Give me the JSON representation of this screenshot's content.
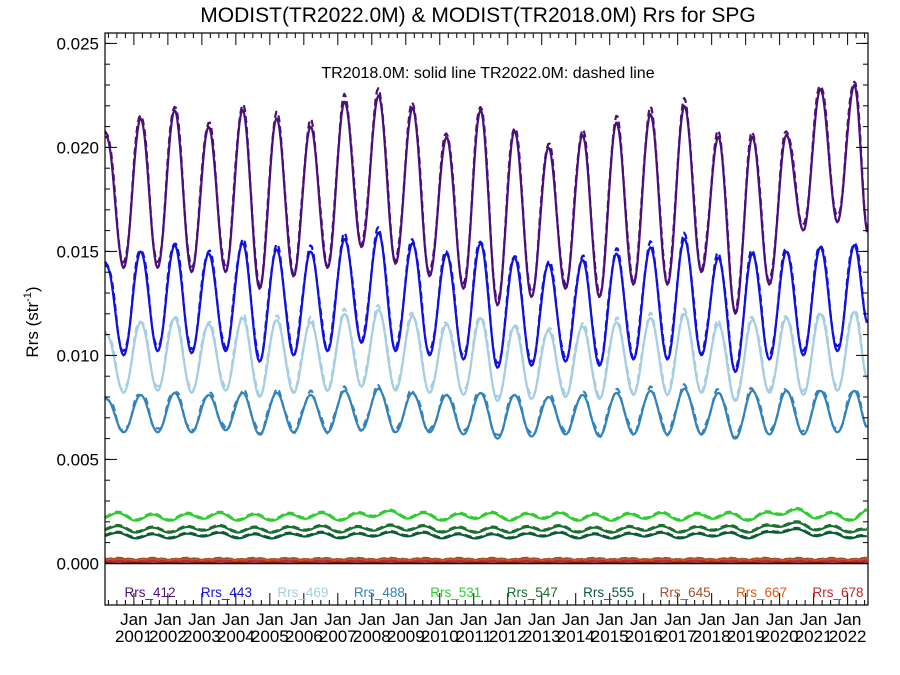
{
  "chart_data": {
    "type": "line",
    "title": "MODIST(TR2022.0M) & MODIST(TR2018.0M)  Rrs for SPG",
    "annotation": "TR2018.0M: solid line   TR2022.0M: dashed line",
    "ylabel": "Rrs (str",
    "ylabel_sup": "-1",
    "ylabel_end": ")",
    "ylim": [
      -0.002,
      0.0255
    ],
    "xlim": [
      2000.15,
      2022.6
    ],
    "y_ticks": [
      {
        "value": 0.0,
        "label": "0.000"
      },
      {
        "value": 0.005,
        "label": "0.005"
      },
      {
        "value": 0.01,
        "label": "0.010"
      },
      {
        "value": 0.015,
        "label": "0.015"
      },
      {
        "value": 0.02,
        "label": "0.020"
      },
      {
        "value": 0.025,
        "label": "0.025"
      }
    ],
    "x_ticks": [
      {
        "value": 2001,
        "label_top": "Jan",
        "label_bottom": "2001"
      },
      {
        "value": 2002,
        "label_top": "Jan",
        "label_bottom": "2002"
      },
      {
        "value": 2003,
        "label_top": "Jan",
        "label_bottom": "2003"
      },
      {
        "value": 2004,
        "label_top": "Jan",
        "label_bottom": "2004"
      },
      {
        "value": 2005,
        "label_top": "Jan",
        "label_bottom": "2005"
      },
      {
        "value": 2006,
        "label_top": "Jan",
        "label_bottom": "2006"
      },
      {
        "value": 2007,
        "label_top": "Jan",
        "label_bottom": "2007"
      },
      {
        "value": 2008,
        "label_top": "Jan",
        "label_bottom": "2008"
      },
      {
        "value": 2009,
        "label_top": "Jan",
        "label_bottom": "2009"
      },
      {
        "value": 2010,
        "label_top": "Jan",
        "label_bottom": "2010"
      },
      {
        "value": 2011,
        "label_top": "Jan",
        "label_bottom": "2011"
      },
      {
        "value": 2012,
        "label_top": "Jan",
        "label_bottom": "2012"
      },
      {
        "value": 2013,
        "label_top": "Jan",
        "label_bottom": "2013"
      },
      {
        "value": 2014,
        "label_top": "Jan",
        "label_bottom": "2014"
      },
      {
        "value": 2015,
        "label_top": "Jan",
        "label_bottom": "2015"
      },
      {
        "value": 2016,
        "label_top": "Jan",
        "label_bottom": "2016"
      },
      {
        "value": 2017,
        "label_top": "Jan",
        "label_bottom": "2017"
      },
      {
        "value": 2018,
        "label_top": "Jan",
        "label_bottom": "2018"
      },
      {
        "value": 2019,
        "label_top": "Jan",
        "label_bottom": "2019"
      },
      {
        "value": 2020,
        "label_top": "Jan",
        "label_bottom": "2020"
      },
      {
        "value": 2021,
        "label_top": "Jan",
        "label_bottom": "2021"
      },
      {
        "value": 2022,
        "label_top": "Jan",
        "label_bottom": "2022"
      }
    ],
    "series": [
      {
        "name": "Rrs_412",
        "color": "#4b0f7a",
        "peak_month": 6.5,
        "x": [
          2000.2,
          2000.7,
          2001.2,
          2001.7,
          2002.2,
          2002.7,
          2003.2,
          2003.7,
          2004.2,
          2004.7,
          2005.2,
          2005.7,
          2006.2,
          2006.7,
          2007.2,
          2007.7,
          2008.2,
          2008.7,
          2009.2,
          2009.7,
          2010.2,
          2010.7,
          2011.2,
          2011.7,
          2012.2,
          2012.7,
          2013.2,
          2013.7,
          2014.2,
          2014.7,
          2015.2,
          2015.7,
          2016.2,
          2016.7,
          2017.2,
          2017.7,
          2018.2,
          2018.7,
          2019.2,
          2019.7,
          2020.2,
          2020.7,
          2021.2,
          2021.7,
          2022.2,
          2022.6
        ],
        "y": [
          0.0205,
          0.0142,
          0.0214,
          0.0142,
          0.0218,
          0.014,
          0.021,
          0.014,
          0.0218,
          0.0132,
          0.0214,
          0.0138,
          0.021,
          0.0142,
          0.0222,
          0.0152,
          0.0225,
          0.0144,
          0.0219,
          0.0138,
          0.0205,
          0.0132,
          0.0218,
          0.0124,
          0.0208,
          0.0128,
          0.02,
          0.0132,
          0.0206,
          0.0128,
          0.0212,
          0.0134,
          0.0216,
          0.0134,
          0.022,
          0.014,
          0.0205,
          0.012,
          0.0205,
          0.0134,
          0.0206,
          0.016,
          0.0228,
          0.0164,
          0.023,
          0.0158
        ]
      },
      {
        "name": "Rrs_443",
        "color": "#1010e0",
        "peak_month": 6.5,
        "x": [
          2000.2,
          2000.7,
          2001.2,
          2001.7,
          2002.2,
          2002.7,
          2003.2,
          2003.7,
          2004.2,
          2004.7,
          2005.2,
          2005.7,
          2006.2,
          2006.7,
          2007.2,
          2007.7,
          2008.2,
          2008.7,
          2009.2,
          2009.7,
          2010.2,
          2010.7,
          2011.2,
          2011.7,
          2012.2,
          2012.7,
          2013.2,
          2013.7,
          2014.2,
          2014.7,
          2015.2,
          2015.7,
          2016.2,
          2016.7,
          2017.2,
          2017.7,
          2018.2,
          2018.7,
          2019.2,
          2019.7,
          2020.2,
          2020.7,
          2021.2,
          2021.7,
          2022.2,
          2022.6
        ],
        "y": [
          0.0143,
          0.01,
          0.015,
          0.0102,
          0.0153,
          0.0101,
          0.0149,
          0.0102,
          0.0154,
          0.0097,
          0.0151,
          0.01,
          0.015,
          0.0102,
          0.0156,
          0.0106,
          0.0159,
          0.0102,
          0.0154,
          0.01,
          0.0149,
          0.0098,
          0.0154,
          0.0094,
          0.0147,
          0.0095,
          0.0144,
          0.0097,
          0.0146,
          0.0095,
          0.0149,
          0.0098,
          0.0152,
          0.0098,
          0.0156,
          0.01,
          0.0147,
          0.0092,
          0.0149,
          0.0098,
          0.015,
          0.01,
          0.0152,
          0.0102,
          0.0153,
          0.0115
        ]
      },
      {
        "name": "Rrs_469",
        "color": "#a6cee3",
        "peak_month": 6.5,
        "x": [
          2000.2,
          2000.7,
          2001.2,
          2001.7,
          2002.2,
          2002.7,
          2003.2,
          2003.7,
          2004.2,
          2004.7,
          2005.2,
          2005.7,
          2006.2,
          2006.7,
          2007.2,
          2007.7,
          2008.2,
          2008.7,
          2009.2,
          2009.7,
          2010.2,
          2010.7,
          2011.2,
          2011.7,
          2012.2,
          2012.7,
          2013.2,
          2013.7,
          2014.2,
          2014.7,
          2015.2,
          2015.7,
          2016.2,
          2016.7,
          2017.2,
          2017.7,
          2018.2,
          2018.7,
          2019.2,
          2019.7,
          2020.2,
          2020.7,
          2021.2,
          2021.7,
          2022.2,
          2022.6
        ],
        "y": [
          0.011,
          0.0082,
          0.0116,
          0.0083,
          0.0118,
          0.0082,
          0.0115,
          0.0083,
          0.0118,
          0.008,
          0.0117,
          0.0082,
          0.0116,
          0.0083,
          0.012,
          0.0085,
          0.0122,
          0.0083,
          0.0119,
          0.0082,
          0.0115,
          0.0081,
          0.0118,
          0.0078,
          0.0114,
          0.0079,
          0.0112,
          0.008,
          0.0114,
          0.0079,
          0.0116,
          0.0081,
          0.0118,
          0.0081,
          0.012,
          0.0082,
          0.0115,
          0.0078,
          0.0117,
          0.0082,
          0.0118,
          0.0081,
          0.012,
          0.0083,
          0.0121,
          0.0088
        ]
      },
      {
        "name": "Rrs_488",
        "color": "#3182bd",
        "peak_month": 6.5,
        "x": [
          2000.2,
          2000.7,
          2001.2,
          2001.7,
          2002.2,
          2002.7,
          2003.2,
          2003.7,
          2004.2,
          2004.7,
          2005.2,
          2005.7,
          2006.2,
          2006.7,
          2007.2,
          2007.7,
          2008.2,
          2008.7,
          2009.2,
          2009.7,
          2010.2,
          2010.7,
          2011.2,
          2011.7,
          2012.2,
          2012.7,
          2013.2,
          2013.7,
          2014.2,
          2014.7,
          2015.2,
          2015.7,
          2016.2,
          2016.7,
          2017.2,
          2017.7,
          2018.2,
          2018.7,
          2019.2,
          2019.7,
          2020.2,
          2020.7,
          2021.2,
          2021.7,
          2022.2,
          2022.6
        ],
        "y": [
          0.0079,
          0.0063,
          0.0081,
          0.0063,
          0.0082,
          0.0063,
          0.0081,
          0.0064,
          0.0082,
          0.0062,
          0.0082,
          0.0063,
          0.0081,
          0.0063,
          0.0083,
          0.0064,
          0.0084,
          0.0063,
          0.0082,
          0.0063,
          0.0081,
          0.0062,
          0.0082,
          0.006,
          0.0081,
          0.0061,
          0.008,
          0.0062,
          0.0081,
          0.0061,
          0.0082,
          0.0062,
          0.0083,
          0.0062,
          0.0084,
          0.0062,
          0.0082,
          0.006,
          0.0083,
          0.0062,
          0.0083,
          0.0062,
          0.0083,
          0.0063,
          0.0083,
          0.0065
        ]
      },
      {
        "name": "Rrs_531",
        "color": "#2ecc2e",
        "peak_month": 6.5,
        "x": [
          2000.2,
          2001.2,
          2002.2,
          2003.2,
          2004.2,
          2005.2,
          2006.2,
          2007.2,
          2008.2,
          2009.2,
          2010.2,
          2011.2,
          2012.2,
          2013.2,
          2014.2,
          2015.2,
          2016.2,
          2017.2,
          2018.2,
          2019.2,
          2020.2,
          2021.2,
          2022.2,
          2022.6
        ],
        "y": [
          0.0023,
          0.0022,
          0.0022,
          0.0023,
          0.0022,
          0.0022,
          0.0023,
          0.0022,
          0.0024,
          0.0023,
          0.0022,
          0.0023,
          0.0022,
          0.0023,
          0.0022,
          0.0022,
          0.0023,
          0.0022,
          0.0023,
          0.0022,
          0.0025,
          0.0023,
          0.0022,
          0.0024
        ],
        "amplitude": 0.00015
      },
      {
        "name": "Rrs_547",
        "color": "#1b6e2f",
        "peak_month": 6.5,
        "x": [
          2000.2,
          2001.2,
          2002.2,
          2003.2,
          2004.2,
          2005.2,
          2006.2,
          2007.2,
          2008.2,
          2009.2,
          2010.2,
          2011.2,
          2012.2,
          2013.2,
          2014.2,
          2015.2,
          2016.2,
          2017.2,
          2018.2,
          2019.2,
          2020.2,
          2021.2,
          2022.2,
          2022.6
        ],
        "y": [
          0.0017,
          0.0016,
          0.0016,
          0.0017,
          0.0016,
          0.0016,
          0.0017,
          0.0016,
          0.0017,
          0.0017,
          0.0016,
          0.0016,
          0.0016,
          0.0017,
          0.0016,
          0.0016,
          0.0017,
          0.0016,
          0.0017,
          0.0016,
          0.0019,
          0.0017,
          0.0016,
          0.0015
        ],
        "amplitude": 0.00012
      },
      {
        "name": "Rrs_555",
        "color": "#0d5a36",
        "peak_month": 6.5,
        "x": [
          2000.2,
          2001.2,
          2002.2,
          2003.2,
          2004.2,
          2005.2,
          2006.2,
          2007.2,
          2008.2,
          2009.2,
          2010.2,
          2011.2,
          2012.2,
          2013.2,
          2014.2,
          2015.2,
          2016.2,
          2017.2,
          2018.2,
          2019.2,
          2020.2,
          2021.2,
          2022.2,
          2022.6
        ],
        "y": [
          0.0014,
          0.0013,
          0.0013,
          0.0014,
          0.0013,
          0.0013,
          0.0014,
          0.0013,
          0.0014,
          0.0014,
          0.0013,
          0.0013,
          0.0013,
          0.0014,
          0.0013,
          0.0013,
          0.0014,
          0.0013,
          0.0014,
          0.0013,
          0.0016,
          0.0014,
          0.0013,
          0.0012
        ],
        "amplitude": 0.0001
      },
      {
        "name": "Rrs_645",
        "color": "#a0522d",
        "peak_month": 6.5,
        "x": [
          2000.2,
          2006.2,
          2012.2,
          2018.2,
          2022.6
        ],
        "y": [
          0.0002,
          0.0002,
          0.0002,
          0.0002,
          0.0002
        ],
        "amplitude": 3e-05
      },
      {
        "name": "Rrs_667",
        "color": "#e05a10",
        "peak_month": 6.5,
        "x": [
          2000.2,
          2006.2,
          2012.2,
          2018.2,
          2022.6
        ],
        "y": [
          0.00012,
          0.00012,
          0.00012,
          0.00012,
          0.00012
        ],
        "amplitude": 2e-05
      },
      {
        "name": "Rrs_678",
        "color": "#c0282a",
        "peak_month": 6.5,
        "x": [
          2000.2,
          2006.2,
          2012.2,
          2018.2,
          2022.6
        ],
        "y": [
          8e-05,
          8e-05,
          8e-05,
          8e-05,
          8e-05
        ],
        "amplitude": 2e-05
      }
    ],
    "legend_position": "bottom",
    "grid": false
  }
}
